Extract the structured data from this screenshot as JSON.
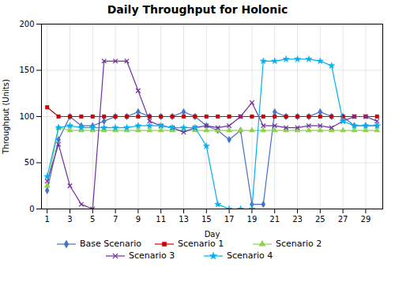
{
  "chart_data": {
    "type": "line",
    "title": "Daily Throughput for Holonic",
    "xlabel": "Day",
    "ylabel": "Throughput (Units)",
    "x": [
      1,
      2,
      3,
      4,
      5,
      6,
      7,
      8,
      9,
      10,
      11,
      12,
      13,
      14,
      15,
      16,
      17,
      18,
      19,
      20,
      21,
      22,
      23,
      24,
      25,
      26,
      27,
      28,
      29,
      30
    ],
    "xlim": [
      0.5,
      30.5
    ],
    "xticks": [
      1,
      3,
      5,
      7,
      9,
      11,
      13,
      15,
      17,
      19,
      21,
      23,
      25,
      27,
      29
    ],
    "ylim": [
      0,
      200
    ],
    "yticks": [
      0,
      50,
      100,
      150,
      200
    ],
    "grid": true,
    "legend": "bottom",
    "series": [
      {
        "name": "Base Scenario",
        "color": "#4472C4",
        "marker": "diamond",
        "values": [
          20,
          75,
          100,
          90,
          90,
          95,
          100,
          100,
          105,
          100,
          100,
          100,
          105,
          100,
          90,
          85,
          75,
          85,
          5,
          5,
          105,
          100,
          100,
          100,
          105,
          100,
          100,
          90,
          90,
          90
        ]
      },
      {
        "name": "Scenario 1",
        "color": "#CC0000",
        "marker": "square",
        "values": [
          110,
          100,
          100,
          100,
          100,
          100,
          100,
          100,
          100,
          100,
          100,
          100,
          100,
          100,
          100,
          100,
          100,
          100,
          100,
          100,
          100,
          100,
          100,
          100,
          100,
          100,
          100,
          100,
          100,
          100
        ]
      },
      {
        "name": "Scenario 2",
        "color": "#92D050",
        "marker": "triangle",
        "values": [
          25,
          88,
          85,
          85,
          85,
          85,
          85,
          85,
          85,
          85,
          85,
          85,
          85,
          85,
          85,
          85,
          85,
          85,
          85,
          85,
          85,
          85,
          85,
          85,
          85,
          85,
          85,
          85,
          85,
          85
        ]
      },
      {
        "name": "Scenario 3",
        "color": "#7030A0",
        "marker": "x",
        "values": [
          30,
          70,
          25,
          5,
          0,
          160,
          160,
          160,
          128,
          95,
          90,
          88,
          83,
          88,
          90,
          88,
          90,
          100,
          115,
          90,
          90,
          88,
          88,
          90,
          90,
          88,
          95,
          100,
          100,
          95
        ]
      },
      {
        "name": "Scenario 4",
        "color": "#00B0F0",
        "marker": "star",
        "values": [
          35,
          88,
          90,
          88,
          88,
          88,
          88,
          88,
          90,
          90,
          90,
          88,
          88,
          88,
          68,
          5,
          0,
          0,
          0,
          160,
          160,
          162,
          162,
          162,
          160,
          155,
          95,
          90,
          90,
          90
        ]
      }
    ]
  }
}
